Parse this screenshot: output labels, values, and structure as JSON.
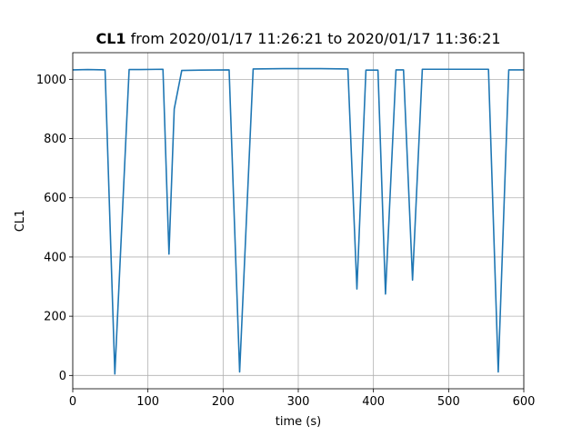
{
  "chart_data": {
    "type": "line",
    "title_bold": "CL1",
    "title_rest": " from 2020/01/17 11:26:21 to 2020/01/17 11:36:21",
    "xlabel": "time (s)",
    "ylabel": "CL1",
    "xlim": [
      0,
      600
    ],
    "ylim": [
      -45,
      1090
    ],
    "xticks": [
      0,
      100,
      200,
      300,
      400,
      500,
      600
    ],
    "yticks": [
      0,
      200,
      400,
      600,
      800,
      1000
    ],
    "grid": true,
    "color": "#1f77b4",
    "series": [
      {
        "x": [
          0,
          20,
          43,
          56,
          75,
          90,
          120,
          128,
          135,
          145,
          170,
          208,
          222,
          240,
          280,
          330,
          366,
          378,
          390,
          400,
          406,
          416,
          430,
          440,
          452,
          465,
          500,
          553,
          566,
          580,
          590,
          600
        ],
        "y": [
          1032,
          1033,
          1032,
          5,
          1033,
          1033,
          1034,
          410,
          900,
          1030,
          1031,
          1032,
          12,
          1035,
          1036,
          1036,
          1035,
          292,
          1031,
          1031,
          1031,
          275,
          1032,
          1032,
          322,
          1034,
          1034,
          1034,
          12,
          1032,
          1032,
          1032
        ]
      }
    ]
  }
}
